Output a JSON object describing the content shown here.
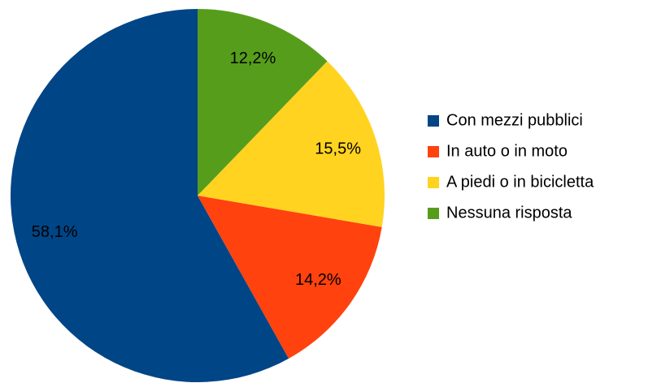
{
  "chart_data": {
    "type": "pie",
    "categories": [
      "Con mezzi pubblici",
      "In auto o in moto",
      "A piedi o in bicicletta",
      "Nessuna risposta"
    ],
    "values": [
      58.1,
      14.2,
      15.5,
      12.2
    ],
    "value_labels": [
      "58,1%",
      "14,2%",
      "15,5%",
      "12,2%"
    ],
    "colors": [
      "#004586",
      "#ff420e",
      "#ffd320",
      "#579d1c"
    ],
    "legend": "right"
  }
}
